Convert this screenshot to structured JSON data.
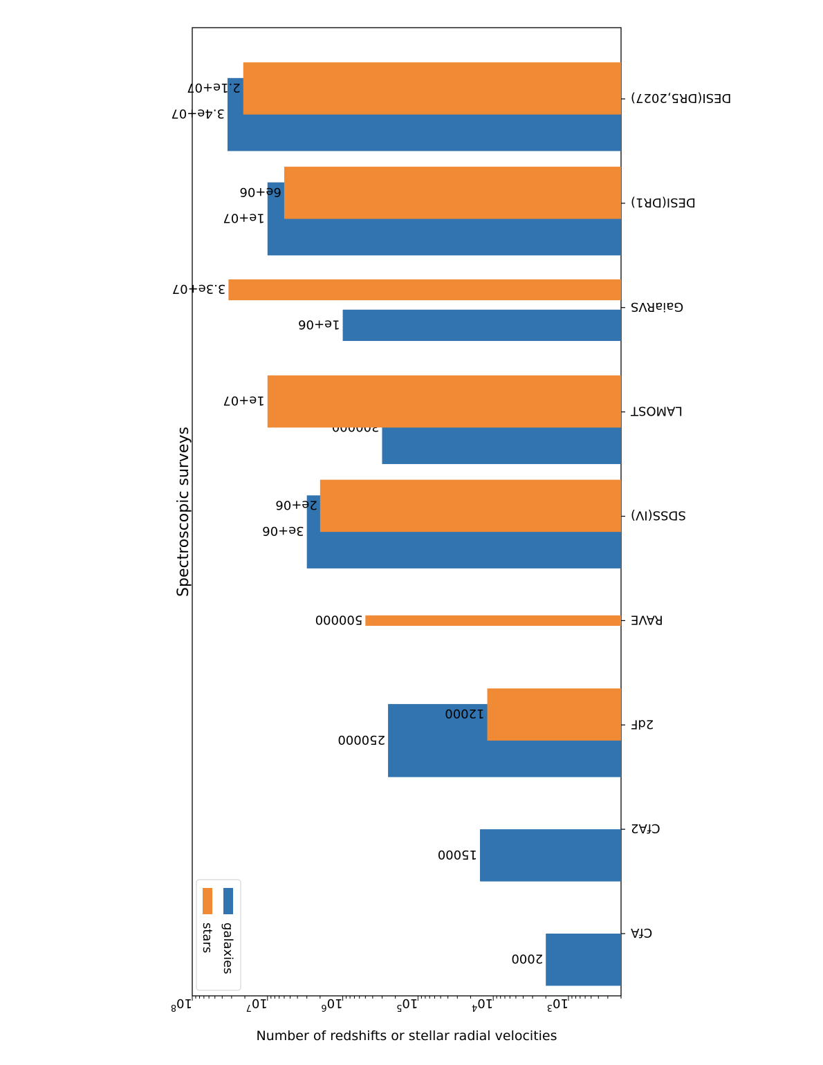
{
  "chart_data": {
    "type": "bar",
    "orientation": "rotated-90-clockwise",
    "title": "Spectroscopic surveys",
    "ylabel": "Number of redshifts or stellar radial velocities",
    "xlabel": "",
    "yscale": "log",
    "ylim": [
      200,
      100000000
    ],
    "y_ticks": [
      {
        "base": "10",
        "exp": "3",
        "value": 1000
      },
      {
        "base": "10",
        "exp": "4",
        "value": 10000
      },
      {
        "base": "10",
        "exp": "5",
        "value": 100000
      },
      {
        "base": "10",
        "exp": "6",
        "value": 1000000
      },
      {
        "base": "10",
        "exp": "7",
        "value": 10000000
      },
      {
        "base": "10",
        "exp": "8",
        "value": 100000000
      }
    ],
    "categories": [
      "CfA",
      "CfA2",
      "2dF",
      "RAVE",
      "SDSS(IV)",
      "LAMOST",
      "GaiaRVS",
      "DESI(DR1)",
      "DESI(DR5,2027)"
    ],
    "series": [
      {
        "name": "galaxies",
        "color": "#3274b0",
        "bars": [
          {
            "category": "CfA",
            "value": 2000,
            "label": "2000",
            "offset": -0.25,
            "width": 0.5
          },
          {
            "category": "CfA2",
            "value": 15000,
            "label": "15000",
            "offset": -0.25,
            "width": 0.5
          },
          {
            "category": "2dF",
            "value": 250000,
            "label": "250000",
            "offset": -0.15,
            "width": 0.7
          },
          {
            "category": "SDSS(IV)",
            "value": 3000000,
            "label": "3e+06",
            "offset": -0.15,
            "width": 0.7
          },
          {
            "category": "LAMOST",
            "value": 300000,
            "label": "300000",
            "offset": -0.15,
            "width": 0.7
          },
          {
            "category": "GaiaRVS",
            "value": 1000000,
            "label": "1e+06",
            "offset": -0.17,
            "width": 0.3
          },
          {
            "category": "DESI(DR1)",
            "value": 10000000,
            "label": "1e+07",
            "offset": -0.15,
            "width": 0.7
          },
          {
            "category": "DESI(DR5,2027)",
            "value": 34000000,
            "label": "3.4e+07",
            "offset": -0.15,
            "width": 0.7
          }
        ]
      },
      {
        "name": "stars",
        "color": "#f08a35",
        "bars": [
          {
            "category": "2dF",
            "value": 12000,
            "label": "12000",
            "offset": 0.1,
            "width": 0.5
          },
          {
            "category": "RAVE",
            "value": 500000,
            "label": "500000",
            "offset": 0.0,
            "width": 0.1
          },
          {
            "category": "SDSS(IV)",
            "value": 2000000,
            "label": "2e+06",
            "offset": 0.1,
            "width": 0.5
          },
          {
            "category": "LAMOST",
            "value": 10000000,
            "label": "1e+07",
            "offset": 0.1,
            "width": 0.5
          },
          {
            "category": "GaiaRVS",
            "value": 33000000,
            "label": "3.3e+07",
            "offset": 0.17,
            "width": 0.2
          },
          {
            "category": "DESI(DR1)",
            "value": 6000000,
            "label": "6e+06",
            "offset": 0.1,
            "width": 0.5
          },
          {
            "category": "DESI(DR5,2027)",
            "value": 21000000,
            "label": "2.1e+07",
            "offset": 0.1,
            "width": 0.5
          }
        ]
      }
    ],
    "legend": {
      "position": "top-left",
      "entries": [
        {
          "label": "galaxies",
          "color": "#3274b0"
        },
        {
          "label": "stars",
          "color": "#f08a35"
        }
      ]
    },
    "grid": false
  }
}
